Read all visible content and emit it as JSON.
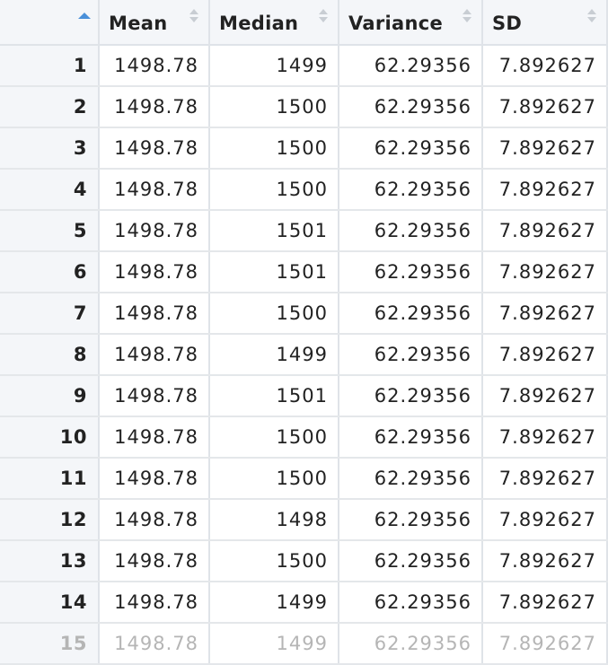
{
  "columns": {
    "mean": "Mean",
    "median": "Median",
    "variance": "Variance",
    "sd": "SD"
  },
  "sort": {
    "column": "row-index",
    "direction": "ascending"
  },
  "rows": [
    {
      "idx": "1",
      "mean": "1498.78",
      "median": "1499",
      "variance": "62.29356",
      "sd": "7.892627"
    },
    {
      "idx": "2",
      "mean": "1498.78",
      "median": "1500",
      "variance": "62.29356",
      "sd": "7.892627"
    },
    {
      "idx": "3",
      "mean": "1498.78",
      "median": "1500",
      "variance": "62.29356",
      "sd": "7.892627"
    },
    {
      "idx": "4",
      "mean": "1498.78",
      "median": "1500",
      "variance": "62.29356",
      "sd": "7.892627"
    },
    {
      "idx": "5",
      "mean": "1498.78",
      "median": "1501",
      "variance": "62.29356",
      "sd": "7.892627"
    },
    {
      "idx": "6",
      "mean": "1498.78",
      "median": "1501",
      "variance": "62.29356",
      "sd": "7.892627"
    },
    {
      "idx": "7",
      "mean": "1498.78",
      "median": "1500",
      "variance": "62.29356",
      "sd": "7.892627"
    },
    {
      "idx": "8",
      "mean": "1498.78",
      "median": "1499",
      "variance": "62.29356",
      "sd": "7.892627"
    },
    {
      "idx": "9",
      "mean": "1498.78",
      "median": "1501",
      "variance": "62.29356",
      "sd": "7.892627"
    },
    {
      "idx": "10",
      "mean": "1498.78",
      "median": "1500",
      "variance": "62.29356",
      "sd": "7.892627"
    },
    {
      "idx": "11",
      "mean": "1498.78",
      "median": "1500",
      "variance": "62.29356",
      "sd": "7.892627"
    },
    {
      "idx": "12",
      "mean": "1498.78",
      "median": "1498",
      "variance": "62.29356",
      "sd": "7.892627"
    },
    {
      "idx": "13",
      "mean": "1498.78",
      "median": "1500",
      "variance": "62.29356",
      "sd": "7.892627"
    },
    {
      "idx": "14",
      "mean": "1498.78",
      "median": "1499",
      "variance": "62.29356",
      "sd": "7.892627"
    }
  ],
  "partial_row": {
    "idx": "15",
    "mean": "1498.78",
    "median": "1499",
    "variance": "62.29356",
    "sd": "7.892627"
  }
}
